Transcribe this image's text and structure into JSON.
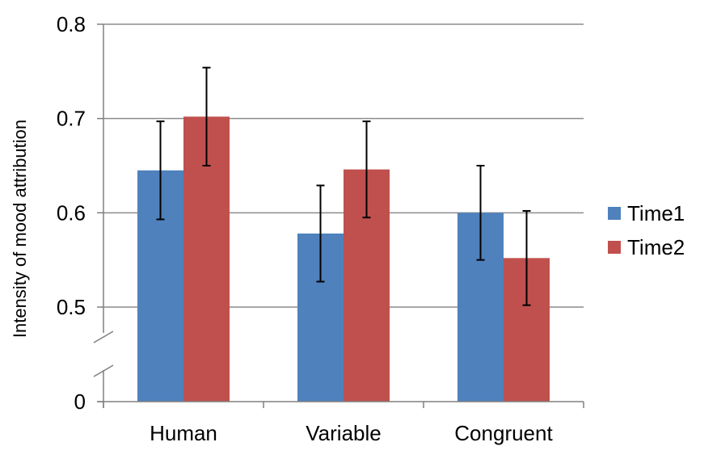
{
  "chart_data": {
    "type": "bar",
    "title": "",
    "xlabel": "",
    "ylabel": "Intensity of mood attribution",
    "categories": [
      "Human",
      "Variable",
      "Congruent"
    ],
    "series": [
      {
        "name": "Time1",
        "color": "#4F81BD",
        "values": [
          0.645,
          0.578,
          0.6
        ],
        "error": [
          0.052,
          0.051,
          0.05
        ]
      },
      {
        "name": "Time2",
        "color": "#C0504D",
        "values": [
          0.702,
          0.646,
          0.552
        ],
        "error": [
          0.052,
          0.051,
          0.05
        ]
      }
    ],
    "ylim": [
      0.4,
      0.8
    ],
    "yticks": [
      {
        "value": 0.8,
        "label": "0.8"
      },
      {
        "value": 0.7,
        "label": "0.7"
      },
      {
        "value": 0.6,
        "label": "0.6"
      },
      {
        "value": 0.5,
        "label": "0.5"
      }
    ],
    "axis_zero_label": "0",
    "axis_break": true,
    "grid": true,
    "legend_position": "right"
  }
}
